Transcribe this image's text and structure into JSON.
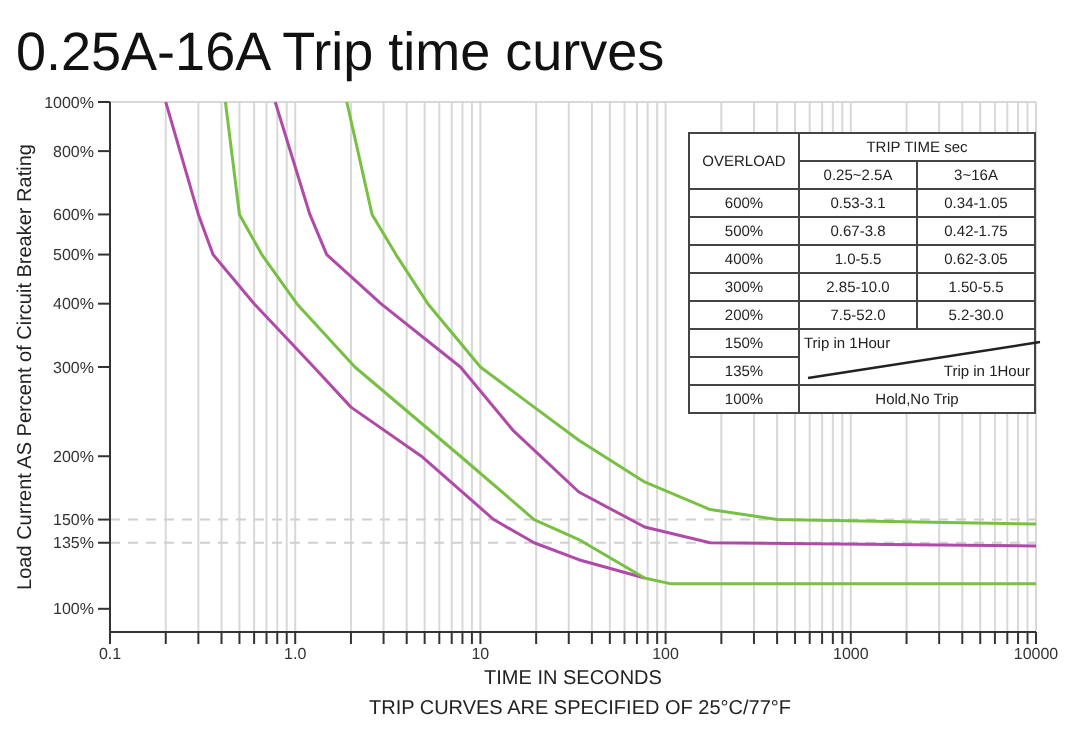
{
  "chart_data": {
    "type": "line",
    "title": "0.25A-16A Trip time curves",
    "xlabel": "TIME IN SECONDS",
    "ylabel": "Load Current AS Percent of Circuit Breaker Rating",
    "log": "xy",
    "grid": true,
    "marker": "none",
    "line_style": "solid",
    "xlim": [
      0.1,
      10000
    ],
    "xticks": [
      0.1,
      {
        "value": 0.2,
        "label": null
      },
      {
        "value": 0.3,
        "label": null
      },
      {
        "value": 0.4,
        "label": null
      },
      {
        "value": 0.5,
        "label": null
      },
      {
        "value": 0.6,
        "label": null
      },
      {
        "value": 0.7,
        "label": null
      },
      {
        "value": 0.8,
        "label": null
      },
      {
        "value": 0.9,
        "label": null
      },
      {
        "value": 1,
        "label": "1.0"
      },
      {
        "value": 2,
        "label": null
      },
      {
        "value": 3,
        "label": null
      },
      {
        "value": 4,
        "label": null
      },
      {
        "value": 5,
        "label": null
      },
      {
        "value": 6,
        "label": null
      },
      {
        "value": 7,
        "label": null
      },
      {
        "value": 8,
        "label": null
      },
      {
        "value": 9,
        "label": null
      },
      10,
      {
        "value": 20,
        "label": null
      },
      {
        "value": 30,
        "label": null
      },
      {
        "value": 40,
        "label": null
      },
      {
        "value": 50,
        "label": null
      },
      {
        "value": 60,
        "label": null
      },
      {
        "value": 70,
        "label": null
      },
      {
        "value": 80,
        "label": null
      },
      {
        "value": 90,
        "label": null
      },
      100,
      {
        "value": 200,
        "label": null
      },
      {
        "value": 300,
        "label": null
      },
      {
        "value": 400,
        "label": null
      },
      {
        "value": 500,
        "label": null
      },
      {
        "value": 600,
        "label": null
      },
      {
        "value": 700,
        "label": null
      },
      {
        "value": 800,
        "label": null
      },
      {
        "value": 900,
        "label": null
      },
      1000,
      {
        "value": 2000,
        "label": null
      },
      {
        "value": 3000,
        "label": null
      },
      {
        "value": 4000,
        "label": null
      },
      {
        "value": 5000,
        "label": null
      },
      {
        "value": 6000,
        "label": null
      },
      {
        "value": 7000,
        "label": null
      },
      {
        "value": 8000,
        "label": null
      },
      {
        "value": 9000,
        "label": null
      },
      10000
    ],
    "ylim": [
      90,
      1000
    ],
    "yticks": [
      {
        "value": 100,
        "label": "100%"
      },
      {
        "value": 135,
        "label": "135%"
      },
      {
        "value": 150,
        "label": "150%"
      },
      {
        "value": 200,
        "label": "200%"
      },
      {
        "value": 300,
        "label": "300%"
      },
      {
        "value": 400,
        "label": "400%"
      },
      {
        "value": 500,
        "label": "500%"
      },
      {
        "value": 600,
        "label": "600%"
      },
      {
        "value": 800,
        "label": "800%"
      },
      {
        "value": 1000,
        "label": "1000%"
      }
    ],
    "ref_lines": [
      {
        "axis": "y",
        "value": 150,
        "color": "#d0d0d0",
        "line_style": "dashed"
      },
      {
        "axis": "y",
        "value": 135,
        "color": "#d0d0d0",
        "line_style": "dashed"
      }
    ],
    "series": [
      {
        "color": "#b04aa8",
        "x": [
          0.2,
          0.3,
          0.36,
          0.6,
          1.26,
          2.0,
          4.8,
          11.8,
          19.5,
          34,
          77
        ],
        "values": [
          1000,
          600,
          500,
          400,
          300,
          250,
          200,
          150,
          135,
          125,
          115
        ]
      },
      {
        "color": "#78c043",
        "x": [
          0.42,
          0.5,
          0.66,
          1.02,
          2.1,
          7.8,
          19.5,
          34,
          77,
          107,
          10000
        ],
        "values": [
          1000,
          600,
          500,
          400,
          300,
          200,
          150,
          137,
          115,
          112,
          112
        ]
      },
      {
        "color": "#b04aa8",
        "x": [
          0.78,
          1.2,
          1.48,
          2.9,
          7.8,
          15,
          34,
          77,
          174,
          10000
        ],
        "values": [
          1000,
          600,
          500,
          400,
          300,
          225,
          170,
          145,
          135,
          133
        ]
      },
      {
        "color": "#78c043",
        "x": [
          1.9,
          2.6,
          3.5,
          5.2,
          10,
          19.5,
          34,
          77,
          174,
          400,
          10000
        ],
        "values": [
          1000,
          600,
          500,
          400,
          300,
          250,
          215,
          178,
          157,
          150,
          147
        ]
      }
    ],
    "annotations": [
      "OVERLOAD",
      "TRIP TIME sec",
      "0.25~2.5A",
      "3~16A",
      "600%",
      "0.53-3.1",
      "0.34-1.05",
      "500%",
      "0.67-3.8",
      "0.42-1.75",
      "400%",
      "1.0-5.5",
      "0.62-3.05",
      "300%",
      "2.85-10.0",
      "1.50-5.5",
      "200%",
      "7.5-52.0",
      "5.2-30.0",
      "150%",
      "Trip in 1Hour",
      "135%",
      "Trip in 1Hour",
      "100%",
      "Hold,No Trip",
      "TRIP CURVES ARE SPECIFIED OF 25°C/77°F"
    ]
  }
}
